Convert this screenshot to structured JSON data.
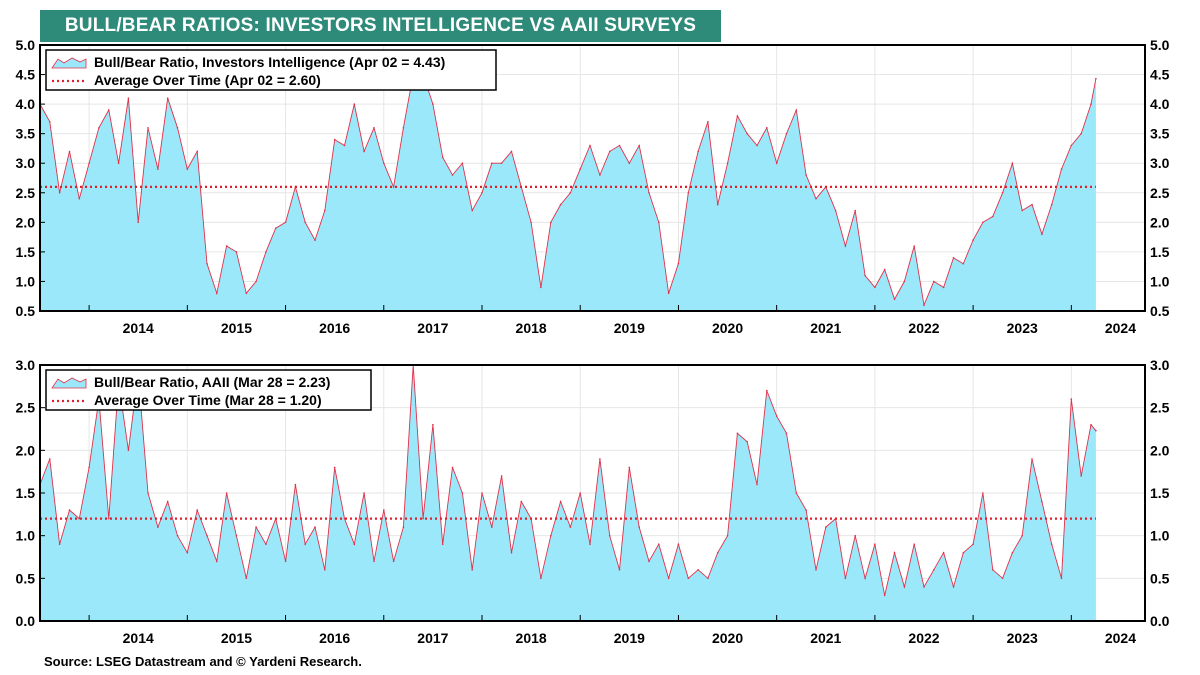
{
  "title": "BULL/BEAR RATIOS: INVESTORS INTELLIGENCE VS AAII SURVEYS",
  "source": "Source: LSEG Datastream and © Yardeni Research.",
  "colors": {
    "fill": "#9be8fa",
    "line": "#e0314a",
    "avg": "#e01f2b",
    "title_bg": "#2e8b7a"
  },
  "chart_data": [
    {
      "type": "area",
      "legend": [
        "Bull/Bear Ratio, Investors Intelligence (Apr 02 = 4.43)",
        "Average Over Time (Apr 02 = 2.60)"
      ],
      "legend_position": "top-left",
      "ylim": [
        0.5,
        5.0
      ],
      "yticks": [
        "0.5",
        "1.0",
        "1.5",
        "2.0",
        "2.5",
        "3.0",
        "3.5",
        "4.0",
        "4.5",
        "5.0"
      ],
      "xlim": [
        2013.5,
        2024.75
      ],
      "xticks": [
        "2014",
        "2015",
        "2016",
        "2017",
        "2018",
        "2019",
        "2020",
        "2021",
        "2022",
        "2023",
        "2024"
      ],
      "average": 2.6,
      "series": [
        {
          "name": "Bull/Bear Ratio, Investors Intelligence",
          "x": [
            2013.5,
            2013.6,
            2013.7,
            2013.8,
            2013.9,
            2014.0,
            2014.1,
            2014.2,
            2014.3,
            2014.4,
            2014.5,
            2014.6,
            2014.7,
            2014.8,
            2014.9,
            2015.0,
            2015.1,
            2015.2,
            2015.3,
            2015.4,
            2015.5,
            2015.6,
            2015.7,
            2015.8,
            2015.9,
            2016.0,
            2016.1,
            2016.2,
            2016.3,
            2016.4,
            2016.5,
            2016.6,
            2016.7,
            2016.8,
            2016.9,
            2017.0,
            2017.1,
            2017.2,
            2017.3,
            2017.4,
            2017.5,
            2017.6,
            2017.7,
            2017.8,
            2017.9,
            2018.0,
            2018.1,
            2018.2,
            2018.3,
            2018.4,
            2018.5,
            2018.6,
            2018.7,
            2018.8,
            2018.9,
            2019.0,
            2019.1,
            2019.2,
            2019.3,
            2019.4,
            2019.5,
            2019.6,
            2019.7,
            2019.8,
            2019.9,
            2020.0,
            2020.1,
            2020.2,
            2020.3,
            2020.4,
            2020.5,
            2020.6,
            2020.7,
            2020.8,
            2020.9,
            2021.0,
            2021.1,
            2021.2,
            2021.3,
            2021.4,
            2021.5,
            2021.6,
            2021.7,
            2021.8,
            2021.9,
            2022.0,
            2022.1,
            2022.2,
            2022.3,
            2022.4,
            2022.5,
            2022.6,
            2022.7,
            2022.8,
            2022.9,
            2023.0,
            2023.1,
            2023.2,
            2023.3,
            2023.4,
            2023.5,
            2023.6,
            2023.7,
            2023.8,
            2023.9,
            2024.0,
            2024.1,
            2024.2,
            2024.25
          ],
          "values": [
            4.0,
            3.7,
            2.5,
            3.2,
            2.4,
            3.0,
            3.6,
            3.9,
            3.0,
            4.1,
            2.0,
            3.6,
            2.9,
            4.1,
            3.6,
            2.9,
            3.2,
            1.3,
            0.8,
            1.6,
            1.5,
            0.8,
            1.0,
            1.5,
            1.9,
            2.0,
            2.6,
            2.0,
            1.7,
            2.2,
            3.4,
            3.3,
            4.0,
            3.2,
            3.6,
            3.0,
            2.6,
            3.6,
            4.5,
            4.5,
            4.0,
            3.1,
            2.8,
            3.0,
            2.2,
            2.5,
            3.0,
            3.0,
            3.2,
            2.6,
            2.0,
            0.9,
            2.0,
            2.3,
            2.5,
            2.9,
            3.3,
            2.8,
            3.2,
            3.3,
            3.0,
            3.3,
            2.5,
            2.0,
            0.8,
            1.3,
            2.5,
            3.2,
            3.7,
            2.3,
            3.0,
            3.8,
            3.5,
            3.3,
            3.6,
            3.0,
            3.5,
            3.9,
            2.8,
            2.4,
            2.6,
            2.2,
            1.6,
            2.2,
            1.1,
            0.9,
            1.2,
            0.7,
            1.0,
            1.6,
            0.6,
            1.0,
            0.9,
            1.4,
            1.3,
            1.7,
            2.0,
            2.1,
            2.5,
            3.0,
            2.2,
            2.3,
            1.8,
            2.3,
            2.9,
            3.3,
            3.5,
            4.0,
            4.43
          ]
        }
      ]
    },
    {
      "type": "area",
      "legend": [
        "Bull/Bear Ratio, AAII (Mar 28 = 2.23)",
        "Average Over Time (Mar 28 = 1.20)"
      ],
      "legend_position": "top-left",
      "ylim": [
        0.0,
        3.0
      ],
      "yticks": [
        "0.0",
        "0.5",
        "1.0",
        "1.5",
        "2.0",
        "2.5",
        "3.0"
      ],
      "xlim": [
        2013.5,
        2024.75
      ],
      "xticks": [
        "2014",
        "2015",
        "2016",
        "2017",
        "2018",
        "2019",
        "2020",
        "2021",
        "2022",
        "2023",
        "2024"
      ],
      "average": 1.2,
      "series": [
        {
          "name": "Bull/Bear Ratio, AAII",
          "x": [
            2013.5,
            2013.6,
            2013.7,
            2013.8,
            2013.9,
            2014.0,
            2014.1,
            2014.2,
            2014.3,
            2014.4,
            2014.5,
            2014.6,
            2014.7,
            2014.8,
            2014.9,
            2015.0,
            2015.1,
            2015.2,
            2015.3,
            2015.4,
            2015.5,
            2015.6,
            2015.7,
            2015.8,
            2015.9,
            2016.0,
            2016.1,
            2016.2,
            2016.3,
            2016.4,
            2016.5,
            2016.6,
            2016.7,
            2016.8,
            2016.9,
            2017.0,
            2017.1,
            2017.2,
            2017.3,
            2017.4,
            2017.5,
            2017.6,
            2017.7,
            2017.8,
            2017.9,
            2018.0,
            2018.1,
            2018.2,
            2018.3,
            2018.4,
            2018.5,
            2018.6,
            2018.7,
            2018.8,
            2018.9,
            2019.0,
            2019.1,
            2019.2,
            2019.3,
            2019.4,
            2019.5,
            2019.6,
            2019.7,
            2019.8,
            2019.9,
            2020.0,
            2020.1,
            2020.2,
            2020.3,
            2020.4,
            2020.5,
            2020.6,
            2020.7,
            2020.8,
            2020.9,
            2021.0,
            2021.1,
            2021.2,
            2021.3,
            2021.4,
            2021.5,
            2021.6,
            2021.7,
            2021.8,
            2021.9,
            2022.0,
            2022.1,
            2022.2,
            2022.3,
            2022.4,
            2022.5,
            2022.6,
            2022.7,
            2022.8,
            2022.9,
            2023.0,
            2023.1,
            2023.2,
            2023.3,
            2023.4,
            2023.5,
            2023.6,
            2023.7,
            2023.8,
            2023.9,
            2024.0,
            2024.1,
            2024.2,
            2024.25
          ],
          "values": [
            1.6,
            1.9,
            0.9,
            1.3,
            1.2,
            1.8,
            2.6,
            1.2,
            2.8,
            2.0,
            2.9,
            1.5,
            1.1,
            1.4,
            1.0,
            0.8,
            1.3,
            1.0,
            0.7,
            1.5,
            1.0,
            0.5,
            1.1,
            0.9,
            1.2,
            0.7,
            1.6,
            0.9,
            1.1,
            0.6,
            1.8,
            1.2,
            0.9,
            1.5,
            0.7,
            1.3,
            0.7,
            1.1,
            3.0,
            1.2,
            2.3,
            0.9,
            1.8,
            1.5,
            0.6,
            1.5,
            1.1,
            1.7,
            0.8,
            1.4,
            1.2,
            0.5,
            1.0,
            1.4,
            1.1,
            1.5,
            0.9,
            1.9,
            1.0,
            0.6,
            1.8,
            1.1,
            0.7,
            0.9,
            0.5,
            0.9,
            0.5,
            0.6,
            0.5,
            0.8,
            1.0,
            2.2,
            2.1,
            1.6,
            2.7,
            2.4,
            2.2,
            1.5,
            1.3,
            0.6,
            1.1,
            1.2,
            0.5,
            1.0,
            0.5,
            0.9,
            0.3,
            0.8,
            0.4,
            0.9,
            0.4,
            0.6,
            0.8,
            0.4,
            0.8,
            0.9,
            1.5,
            0.6,
            0.5,
            0.8,
            1.0,
            1.9,
            1.4,
            0.9,
            0.5,
            2.6,
            1.7,
            2.3,
            2.23
          ]
        }
      ]
    }
  ]
}
